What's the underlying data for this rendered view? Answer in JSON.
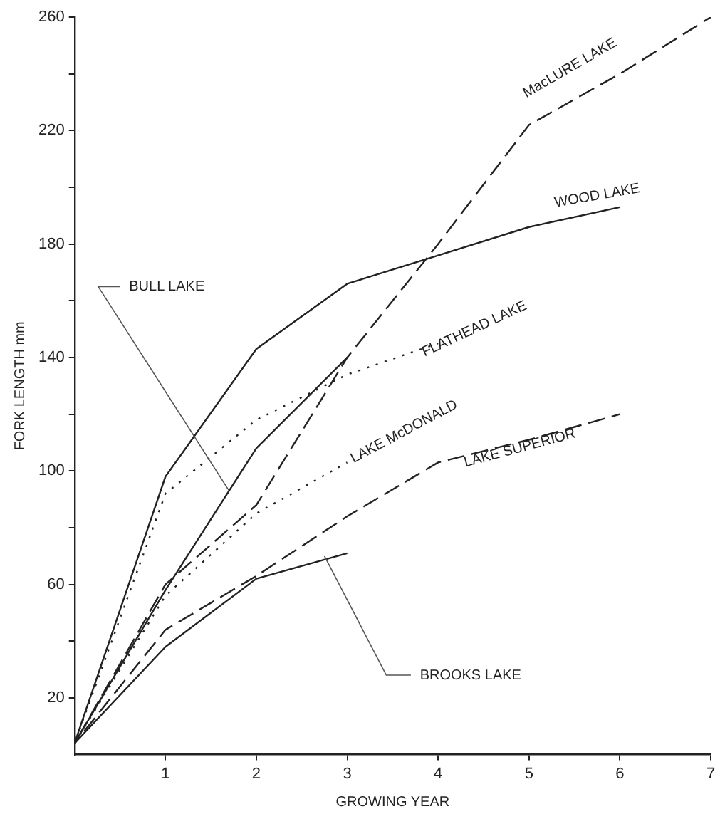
{
  "chart_data": {
    "type": "line",
    "xlabel": "GROWING YEAR",
    "ylabel": "FORK LENGTH mm",
    "xlim": [
      0,
      7
    ],
    "ylim": [
      0,
      260
    ],
    "xticks": [
      1,
      2,
      3,
      4,
      5,
      6,
      7
    ],
    "yticks": [
      20,
      {
        "value": 40,
        "label": null
      },
      60,
      {
        "value": 80,
        "label": null
      },
      100,
      {
        "value": 120,
        "label": null
      },
      140,
      {
        "value": 160,
        "label": null
      },
      180,
      {
        "value": 200,
        "label": null
      },
      220,
      {
        "value": 240,
        "label": null
      },
      260
    ],
    "grid": false,
    "legend": false,
    "marker": "none",
    "series": [
      {
        "name": "MacLURE LAKE",
        "color": "#222222",
        "line_style": "dashed",
        "x": [
          0,
          1,
          2,
          3,
          4,
          5,
          6,
          7
        ],
        "values": [
          4,
          60,
          88,
          140,
          180,
          222,
          240,
          260
        ]
      },
      {
        "name": "WOOD LAKE",
        "color": "#222222",
        "line_style": "solid",
        "x": [
          0,
          1,
          2,
          3,
          4,
          5,
          6
        ],
        "values": [
          4,
          98,
          143,
          166,
          176,
          186,
          193
        ]
      },
      {
        "name": "FLATHEAD LAKE",
        "color": "#222222",
        "line_style": "dotted",
        "x": [
          0,
          1,
          2,
          3,
          4
        ],
        "values": [
          4,
          92,
          118,
          134,
          145
        ]
      },
      {
        "name": "LAKE McDONALD",
        "color": "#222222",
        "line_style": "dotted",
        "x": [
          0,
          1,
          2,
          3
        ],
        "values": [
          4,
          56,
          85,
          103
        ]
      },
      {
        "name": "LAKE SUPERIOR",
        "color": "#222222",
        "line_style": "dashed",
        "x": [
          0,
          1,
          2,
          3,
          4,
          5,
          6
        ],
        "values": [
          4,
          44,
          63,
          84,
          103,
          111,
          120
        ]
      },
      {
        "name": "BULL LAKE",
        "color": "#222222",
        "line_style": "solid",
        "x": [
          0,
          1,
          2,
          3
        ],
        "values": [
          4,
          58,
          108,
          140
        ]
      },
      {
        "name": "BROOKS LAKE",
        "color": "#222222",
        "line_style": "solid",
        "x": [
          0,
          1,
          2,
          3
        ],
        "values": [
          4,
          38,
          62,
          71
        ]
      }
    ]
  }
}
